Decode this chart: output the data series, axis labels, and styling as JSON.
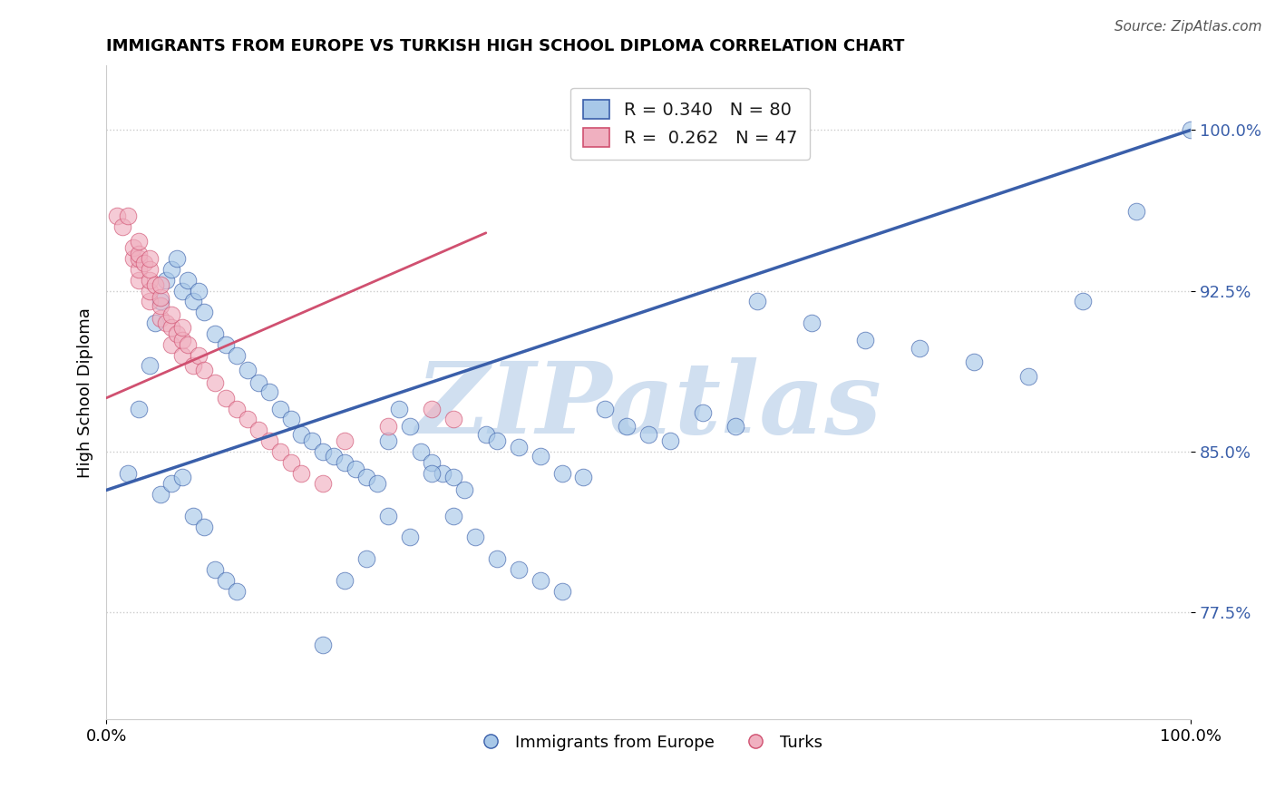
{
  "title": "IMMIGRANTS FROM EUROPE VS TURKISH HIGH SCHOOL DIPLOMA CORRELATION CHART",
  "source": "Source: ZipAtlas.com",
  "ylabel": "High School Diploma",
  "xlim": [
    0.0,
    1.0
  ],
  "ylim": [
    0.725,
    1.03
  ],
  "ytick_labels": [
    "77.5%",
    "85.0%",
    "92.5%",
    "100.0%"
  ],
  "ytick_values": [
    0.775,
    0.85,
    0.925,
    1.0
  ],
  "blue_R": 0.34,
  "blue_N": 80,
  "pink_R": 0.262,
  "pink_N": 47,
  "blue_color": "#a8c8e8",
  "pink_color": "#f0b0c0",
  "trend_blue_color": "#3a5faa",
  "trend_pink_color": "#d05070",
  "watermark_color": "#d0dff0",
  "legend_blue_label": "Immigrants from Europe",
  "legend_pink_label": "Turks",
  "blue_trend_x0": 0.0,
  "blue_trend_y0": 0.832,
  "blue_trend_x1": 1.0,
  "blue_trend_y1": 1.0,
  "pink_trend_x0": 0.0,
  "pink_trend_y0": 0.875,
  "pink_trend_x1": 0.35,
  "pink_trend_y1": 0.952,
  "blue_x": [
    0.02,
    0.03,
    0.04,
    0.045,
    0.05,
    0.055,
    0.06,
    0.065,
    0.07,
    0.075,
    0.08,
    0.085,
    0.09,
    0.1,
    0.11,
    0.12,
    0.13,
    0.14,
    0.15,
    0.16,
    0.17,
    0.18,
    0.19,
    0.2,
    0.21,
    0.22,
    0.23,
    0.24,
    0.25,
    0.26,
    0.27,
    0.28,
    0.29,
    0.3,
    0.31,
    0.32,
    0.33,
    0.35,
    0.36,
    0.38,
    0.4,
    0.42,
    0.44,
    0.46,
    0.48,
    0.5,
    0.52,
    0.55,
    0.58,
    0.6,
    0.65,
    0.7,
    0.75,
    0.8,
    0.85,
    0.9,
    0.95,
    1.0,
    0.05,
    0.06,
    0.07,
    0.08,
    0.09,
    0.1,
    0.11,
    0.12,
    0.2,
    0.22,
    0.24,
    0.26,
    0.28,
    0.3,
    0.32,
    0.34,
    0.36,
    0.38,
    0.4,
    0.42
  ],
  "blue_y": [
    0.84,
    0.87,
    0.89,
    0.91,
    0.92,
    0.93,
    0.935,
    0.94,
    0.925,
    0.93,
    0.92,
    0.925,
    0.915,
    0.905,
    0.9,
    0.895,
    0.888,
    0.882,
    0.878,
    0.87,
    0.865,
    0.858,
    0.855,
    0.85,
    0.848,
    0.845,
    0.842,
    0.838,
    0.835,
    0.855,
    0.87,
    0.862,
    0.85,
    0.845,
    0.84,
    0.838,
    0.832,
    0.858,
    0.855,
    0.852,
    0.848,
    0.84,
    0.838,
    0.87,
    0.862,
    0.858,
    0.855,
    0.868,
    0.862,
    0.92,
    0.91,
    0.902,
    0.898,
    0.892,
    0.885,
    0.92,
    0.962,
    1.0,
    0.83,
    0.835,
    0.838,
    0.82,
    0.815,
    0.795,
    0.79,
    0.785,
    0.76,
    0.79,
    0.8,
    0.82,
    0.81,
    0.84,
    0.82,
    0.81,
    0.8,
    0.795,
    0.79,
    0.785
  ],
  "pink_x": [
    0.01,
    0.015,
    0.02,
    0.025,
    0.025,
    0.03,
    0.03,
    0.03,
    0.03,
    0.03,
    0.035,
    0.04,
    0.04,
    0.04,
    0.04,
    0.04,
    0.045,
    0.05,
    0.05,
    0.05,
    0.05,
    0.055,
    0.06,
    0.06,
    0.06,
    0.065,
    0.07,
    0.07,
    0.07,
    0.075,
    0.08,
    0.085,
    0.09,
    0.1,
    0.11,
    0.12,
    0.13,
    0.14,
    0.15,
    0.16,
    0.17,
    0.18,
    0.2,
    0.22,
    0.26,
    0.3,
    0.32
  ],
  "pink_y": [
    0.96,
    0.955,
    0.96,
    0.94,
    0.945,
    0.93,
    0.935,
    0.94,
    0.942,
    0.948,
    0.938,
    0.92,
    0.925,
    0.93,
    0.935,
    0.94,
    0.928,
    0.912,
    0.918,
    0.922,
    0.928,
    0.91,
    0.9,
    0.908,
    0.914,
    0.905,
    0.895,
    0.902,
    0.908,
    0.9,
    0.89,
    0.895,
    0.888,
    0.882,
    0.875,
    0.87,
    0.865,
    0.86,
    0.855,
    0.85,
    0.845,
    0.84,
    0.835,
    0.855,
    0.862,
    0.87,
    0.865
  ]
}
